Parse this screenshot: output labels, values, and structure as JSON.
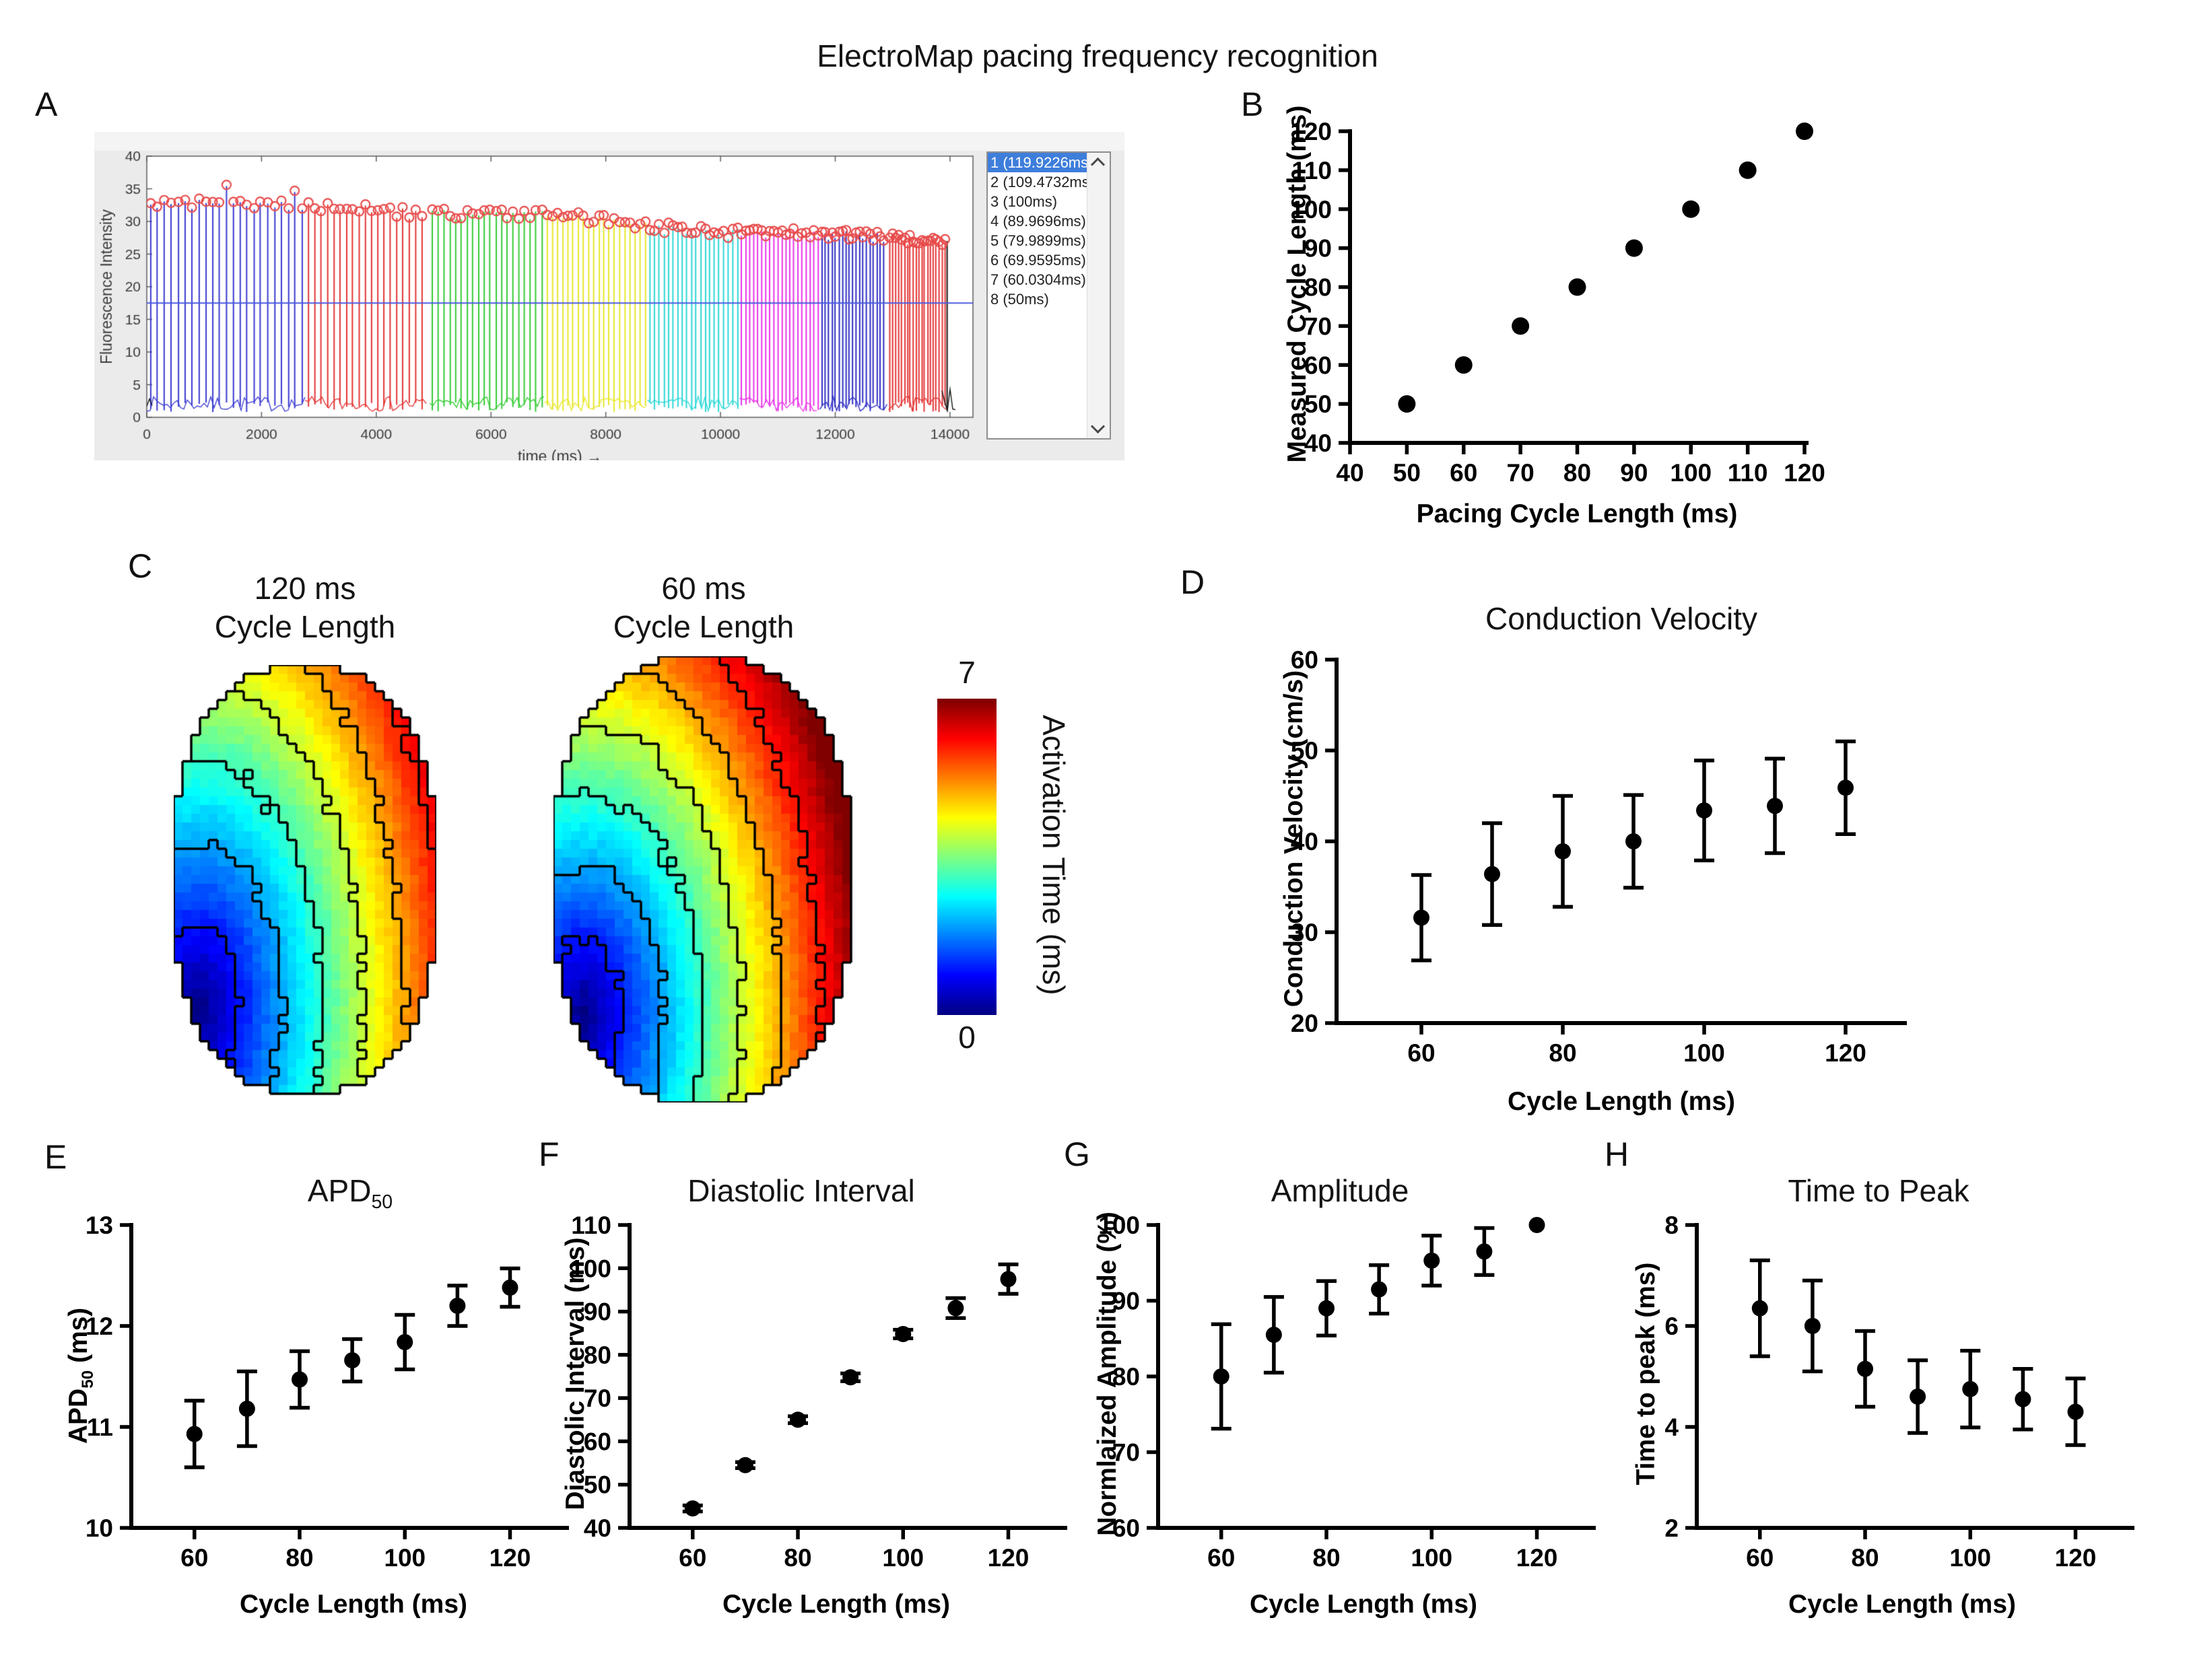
{
  "figure_title": "ElectroMap pacing frequency recognition",
  "panel_labels": {
    "A": "A",
    "B": "B",
    "C": "C",
    "D": "D",
    "E": "E",
    "F": "F",
    "G": "G",
    "H": "H"
  },
  "chart_data": [
    {
      "panel": "A",
      "type": "line",
      "name": "fluorescence-trace",
      "xlabel": "time (ms) →",
      "ylabel": "Fluorescence Intensity",
      "xlim": [
        0,
        14400
      ],
      "ylim": [
        0,
        40
      ],
      "xticks": [
        0,
        2000,
        4000,
        6000,
        8000,
        10000,
        12000,
        14000
      ],
      "yticks": [
        0,
        5,
        10,
        15,
        20,
        25,
        30,
        35,
        40
      ],
      "threshold_value": 17.5,
      "threshold_color": "#4a5ae0",
      "peak_marker_color": "#e84b4b",
      "selection_color": "#3e7edb",
      "segments": [
        {
          "label": "1 (119.9226ms)",
          "cycle_ms": 119.9226,
          "start_ms": 0,
          "end_ms": 2760,
          "color": "#3a3ad2",
          "selected": true
        },
        {
          "label": "2 (109.4732ms)",
          "cycle_ms": 109.4732,
          "start_ms": 2760,
          "end_ms": 4930,
          "color": "#e43434",
          "selected": false
        },
        {
          "label": "3 (100ms)",
          "cycle_ms": 100.0,
          "start_ms": 4930,
          "end_ms": 6930,
          "color": "#33cc33",
          "selected": false
        },
        {
          "label": "4 (89.9696ms)",
          "cycle_ms": 89.9696,
          "start_ms": 6930,
          "end_ms": 8730,
          "color": "#e8e82a",
          "selected": false
        },
        {
          "label": "5 (79.9899ms)",
          "cycle_ms": 79.9899,
          "start_ms": 8730,
          "end_ms": 10330,
          "color": "#2bd8d8",
          "selected": false
        },
        {
          "label": "6 (69.9595ms)",
          "cycle_ms": 69.9595,
          "start_ms": 10330,
          "end_ms": 11730,
          "color": "#e832e8",
          "selected": false
        },
        {
          "label": "7 (60.0304ms)",
          "cycle_ms": 60.0304,
          "start_ms": 11730,
          "end_ms": 12930,
          "color": "#2d2dc4",
          "selected": false
        },
        {
          "label": "8 (50ms)",
          "cycle_ms": 50.0,
          "start_ms": 12930,
          "end_ms": 13930,
          "color": "#e43434",
          "selected": false
        }
      ]
    },
    {
      "panel": "B",
      "type": "scatter",
      "title": "",
      "xlabel": "Pacing Cycle Length (ms)",
      "ylabel": "Measured Cycle Length (ms)",
      "xlim": [
        40,
        120
      ],
      "ylim": [
        40,
        120
      ],
      "xticks": [
        40,
        50,
        60,
        70,
        80,
        90,
        100,
        110,
        120
      ],
      "yticks": [
        40,
        50,
        60,
        70,
        80,
        90,
        100,
        110,
        120
      ],
      "x": [
        50,
        60,
        70,
        80,
        90,
        100,
        110,
        120
      ],
      "y": [
        50,
        60,
        70,
        80,
        90,
        100,
        110,
        120
      ]
    },
    {
      "panel": "C",
      "type": "heatmap",
      "maps": [
        {
          "title_line1": "120 ms",
          "title_line2": "Cycle Length",
          "max_time_ms": 6.3
        },
        {
          "title_line1": "60 ms",
          "title_line2": "Cycle Length",
          "max_time_ms": 7.35
        }
      ],
      "colorbar": {
        "min": 0,
        "max": 7,
        "label": "Activation Time (ms)",
        "colormap": "jet"
      }
    },
    {
      "panel": "D",
      "type": "scatter",
      "title": "Conduction Velocity",
      "xlabel": "Cycle Length (ms)",
      "ylabel": "Conduction Velocity (cm/s)",
      "xlim": [
        48,
        128
      ],
      "ylim": [
        20,
        60
      ],
      "xticks": [
        60,
        80,
        100,
        120
      ],
      "yticks": [
        20,
        30,
        40,
        50,
        60
      ],
      "x": [
        60,
        70,
        80,
        90,
        100,
        110,
        120
      ],
      "y": [
        31.6,
        36.4,
        38.9,
        40.0,
        43.4,
        43.9,
        45.9
      ],
      "err": [
        4.7,
        5.6,
        6.1,
        5.1,
        5.5,
        5.2,
        5.1
      ]
    },
    {
      "panel": "E",
      "type": "scatter",
      "title_main": "APD",
      "title_sub": "50",
      "xlabel": "Cycle Length (ms)",
      "ylabel_main": "APD",
      "ylabel_sub": "50",
      "ylabel_suffix": " (ms)",
      "xlim": [
        48,
        128
      ],
      "ylim": [
        10,
        13
      ],
      "xticks": [
        60,
        80,
        100,
        120
      ],
      "yticks": [
        10,
        11,
        12,
        13
      ],
      "x": [
        60,
        70,
        80,
        90,
        100,
        110,
        120
      ],
      "y": [
        10.93,
        11.18,
        11.47,
        11.66,
        11.84,
        12.2,
        12.38
      ],
      "err": [
        0.33,
        0.37,
        0.28,
        0.21,
        0.27,
        0.2,
        0.19
      ]
    },
    {
      "panel": "F",
      "type": "scatter",
      "title": "Diastolic Interval",
      "xlabel": "Cycle Length (ms)",
      "ylabel": "Diastolic Interval (ms)",
      "xlim": [
        48,
        128
      ],
      "ylim": [
        40,
        110
      ],
      "xticks": [
        60,
        80,
        100,
        120
      ],
      "yticks": [
        40,
        50,
        60,
        70,
        80,
        90,
        100,
        110
      ],
      "x": [
        60,
        70,
        80,
        90,
        100,
        110,
        120
      ],
      "y": [
        44.5,
        54.5,
        65.0,
        74.8,
        84.8,
        90.8,
        97.5
      ],
      "err": [
        0.7,
        0.7,
        0.8,
        0.9,
        1.0,
        2.3,
        3.4
      ]
    },
    {
      "panel": "G",
      "type": "scatter",
      "title": "Amplitude",
      "xlabel": "Cycle Length (ms)",
      "ylabel": "Normlaized Amplitude (%)",
      "xlim": [
        48,
        128
      ],
      "ylim": [
        60,
        100
      ],
      "xticks": [
        60,
        80,
        100,
        120
      ],
      "yticks": [
        60,
        70,
        80,
        90,
        100
      ],
      "x": [
        60,
        70,
        80,
        90,
        100,
        110,
        120
      ],
      "y": [
        80.0,
        85.5,
        89.0,
        91.5,
        95.3,
        96.5,
        100.0
      ],
      "err": [
        6.9,
        5.0,
        3.6,
        3.2,
        3.3,
        3.1,
        0
      ]
    },
    {
      "panel": "H",
      "type": "scatter",
      "title": "Time to Peak",
      "xlabel": "Cycle Length (ms)",
      "ylabel": "Time to peak (ms)",
      "xlim": [
        48,
        128
      ],
      "ylim": [
        2,
        8
      ],
      "xticks": [
        60,
        80,
        100,
        120
      ],
      "yticks": [
        2,
        4,
        6,
        8
      ],
      "x": [
        60,
        70,
        80,
        90,
        100,
        110,
        120
      ],
      "y": [
        6.35,
        6.0,
        5.15,
        4.6,
        4.75,
        4.55,
        4.3
      ],
      "err": [
        0.95,
        0.9,
        0.75,
        0.72,
        0.76,
        0.6,
        0.66
      ]
    }
  ]
}
